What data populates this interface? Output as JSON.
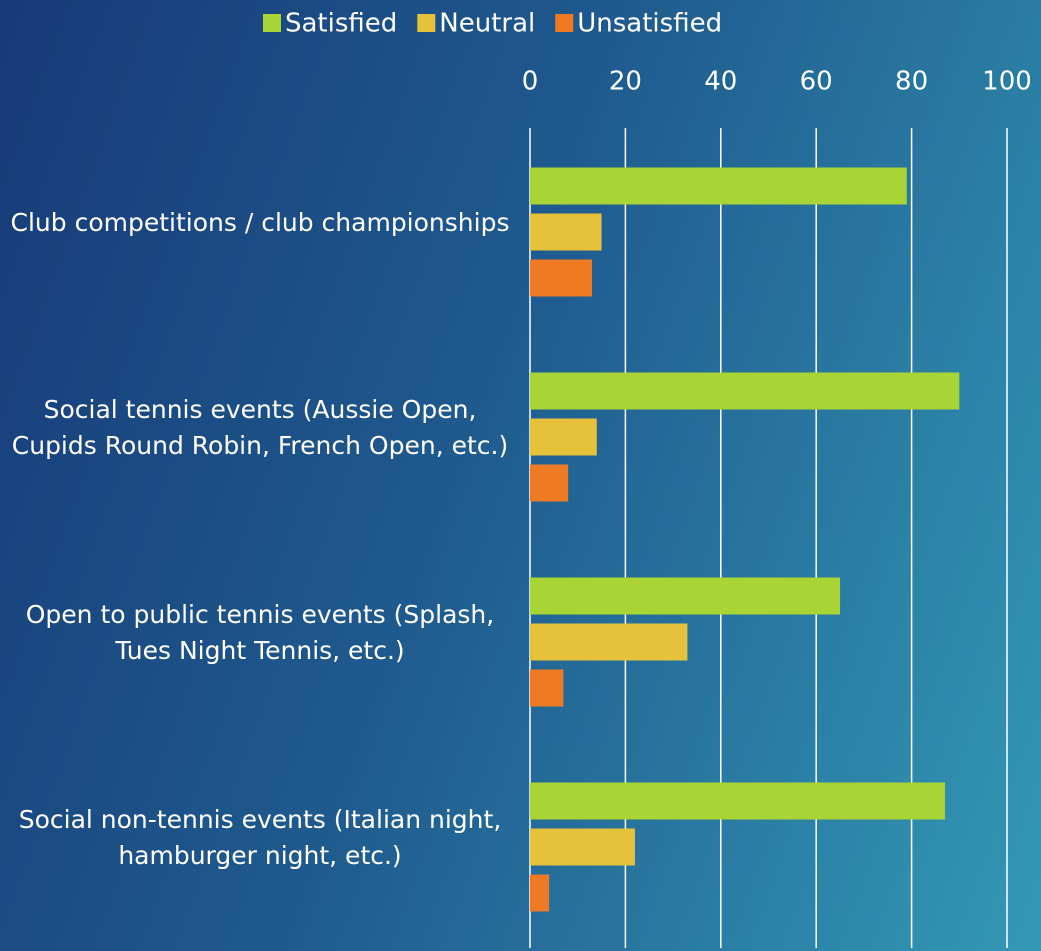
{
  "chart_data": {
    "type": "hbar",
    "categories": [
      "Club competitions / club championships",
      "Social tennis events (Aussie Open, Cupids Round Robin, French Open, etc.)",
      "Open to public tennis events (Splash, Tues Night Tennis, etc.)",
      "Social non-tennis events (Italian night, hamburger night, etc.)"
    ],
    "series": [
      {
        "name": "Satisfied",
        "color": "#a8d435",
        "values": [
          79,
          90,
          65,
          87
        ]
      },
      {
        "name": "Neutral",
        "color": "#e6c13a",
        "values": [
          15,
          14,
          33,
          22
        ]
      },
      {
        "name": "Unsatisfied",
        "color": "#ef7a24",
        "values": [
          13,
          8,
          7,
          4
        ]
      }
    ],
    "xlim": [
      0,
      100
    ],
    "xticks": [
      0,
      20,
      40,
      60,
      80,
      100
    ],
    "grid": true,
    "legend": "top"
  }
}
